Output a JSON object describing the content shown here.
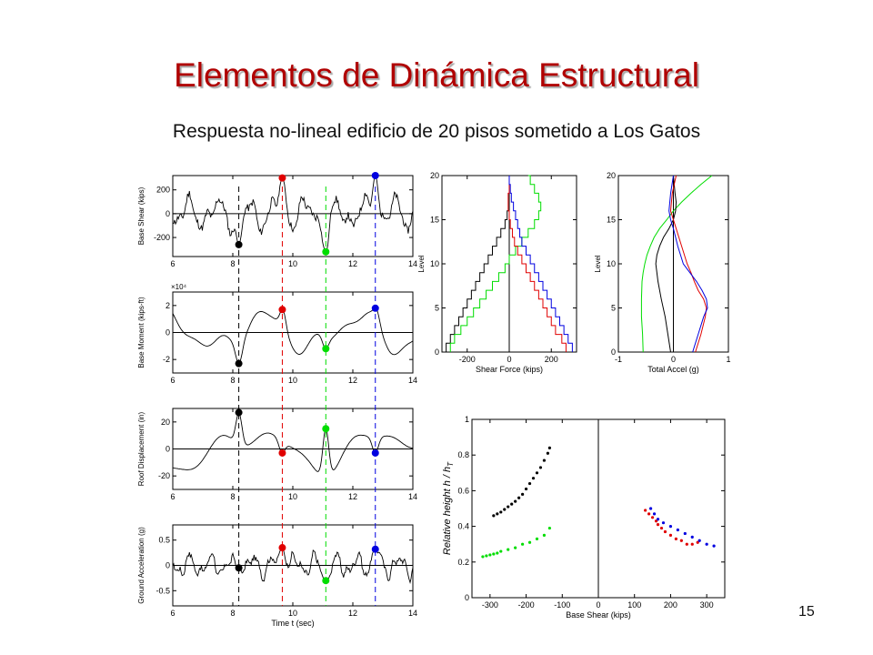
{
  "slide": {
    "title": "Elementos de Dinámica Estructural",
    "subtitle": "Respuesta no-lineal edificio de 20 pisos sometido a Los Gatos",
    "page_number": "15"
  },
  "colors": {
    "black": "#000000",
    "red": "#e00000",
    "green": "#00dd00",
    "blue": "#0000e0"
  },
  "chart_data": [
    {
      "id": "base-shear",
      "type": "line",
      "title": "",
      "xlabel": "",
      "ylabel": "Base Shear (kips)",
      "xlim": [
        6,
        14
      ],
      "ylim": [
        -360,
        320
      ],
      "xticks": [
        6,
        8,
        10,
        12,
        14
      ],
      "yticks": [
        -200,
        0,
        200
      ],
      "amp": 180,
      "seed": 11,
      "freq": 3.2,
      "markers": [
        {
          "x": 8.2,
          "y": -260,
          "color": "black"
        },
        {
          "x": 9.65,
          "y": 300,
          "color": "red"
        },
        {
          "x": 11.1,
          "y": -320,
          "color": "green"
        },
        {
          "x": 12.75,
          "y": 320,
          "color": "blue"
        }
      ]
    },
    {
      "id": "base-moment",
      "type": "line",
      "title": "",
      "xlabel": "",
      "ylabel": "Base Moment (kips-ft)",
      "scale_label": "×10⁴",
      "xlim": [
        6,
        14
      ],
      "ylim": [
        -3,
        3
      ],
      "xticks": [
        6,
        8,
        10,
        12,
        14
      ],
      "yticks": [
        -2,
        0,
        2
      ],
      "amp": 2,
      "seed": 5,
      "freq": 1.0,
      "markers": [
        {
          "x": 8.2,
          "y": -2.3,
          "color": "black"
        },
        {
          "x": 9.65,
          "y": 1.7,
          "color": "red"
        },
        {
          "x": 11.1,
          "y": -1.2,
          "color": "green"
        },
        {
          "x": 12.75,
          "y": 1.8,
          "color": "blue"
        }
      ]
    },
    {
      "id": "roof-displacement",
      "type": "line",
      "title": "",
      "xlabel": "",
      "ylabel": "Roof Displacement (in)",
      "xlim": [
        6,
        14
      ],
      "ylim": [
        -30,
        30
      ],
      "xticks": [
        6,
        8,
        10,
        12,
        14
      ],
      "yticks": [
        -20,
        0,
        20
      ],
      "amp": 22,
      "seed": 3,
      "freq": 0.7,
      "markers": [
        {
          "x": 8.2,
          "y": 27,
          "color": "black"
        },
        {
          "x": 9.65,
          "y": -3,
          "color": "red"
        },
        {
          "x": 11.1,
          "y": 15,
          "color": "green"
        },
        {
          "x": 12.75,
          "y": -3,
          "color": "blue"
        }
      ]
    },
    {
      "id": "ground-acceleration",
      "type": "line",
      "title": "",
      "xlabel": "Time t (sec)",
      "ylabel": "Ground Acceleration (g)",
      "xlim": [
        6,
        14
      ],
      "ylim": [
        -0.8,
        0.8
      ],
      "xticks": [
        6,
        8,
        10,
        12,
        14
      ],
      "yticks": [
        -0.5,
        0,
        0.5
      ],
      "amp": 0.3,
      "seed": 17,
      "freq": 4.5,
      "markers": [
        {
          "x": 8.2,
          "y": -0.05,
          "color": "black"
        },
        {
          "x": 9.65,
          "y": 0.35,
          "color": "red"
        },
        {
          "x": 11.1,
          "y": -0.3,
          "color": "green"
        },
        {
          "x": 12.75,
          "y": 0.32,
          "color": "blue"
        }
      ]
    },
    {
      "id": "shear-profile",
      "type": "line",
      "title": "",
      "xlabel": "Shear Force (kips)",
      "ylabel": "Level",
      "xlim": [
        -320,
        320
      ],
      "ylim": [
        0,
        20
      ],
      "xticks": [
        -200,
        0,
        200
      ],
      "yticks": [
        0,
        5,
        10,
        15,
        20
      ],
      "series": [
        {
          "color": "black",
          "x": [
            -300,
            -280,
            -260,
            -240,
            -220,
            -200,
            -180,
            -160,
            -140,
            -120,
            -100,
            -80,
            -60,
            -40,
            -20,
            -10,
            0,
            0,
            0,
            0,
            0
          ],
          "y": [
            0,
            1,
            2,
            3,
            4,
            5,
            6,
            7,
            8,
            9,
            10,
            11,
            12,
            13,
            14,
            15,
            16,
            17,
            18,
            19,
            20
          ]
        },
        {
          "color": "green",
          "x": [
            -280,
            -260,
            -230,
            -200,
            -170,
            -140,
            -110,
            -80,
            -50,
            -20,
            0,
            30,
            60,
            90,
            120,
            140,
            150,
            140,
            120,
            100,
            90
          ],
          "y": [
            0,
            1,
            2,
            3,
            4,
            5,
            6,
            7,
            8,
            9,
            10,
            11,
            12,
            13,
            14,
            15,
            16,
            17,
            18,
            19,
            20
          ]
        },
        {
          "color": "red",
          "x": [
            270,
            250,
            220,
            200,
            180,
            160,
            140,
            120,
            100,
            80,
            60,
            40,
            25,
            15,
            5,
            0,
            -5,
            -5,
            0,
            0,
            0
          ],
          "y": [
            0,
            1,
            2,
            3,
            4,
            5,
            6,
            7,
            8,
            9,
            10,
            11,
            12,
            13,
            14,
            15,
            16,
            17,
            18,
            19,
            20
          ]
        },
        {
          "color": "blue",
          "x": [
            300,
            280,
            260,
            240,
            220,
            200,
            180,
            160,
            140,
            120,
            100,
            80,
            60,
            50,
            40,
            30,
            20,
            10,
            5,
            0,
            0
          ],
          "y": [
            0,
            1,
            2,
            3,
            4,
            5,
            6,
            7,
            8,
            9,
            10,
            11,
            12,
            13,
            14,
            15,
            16,
            17,
            18,
            19,
            20
          ]
        }
      ]
    },
    {
      "id": "accel-profile",
      "type": "line",
      "title": "",
      "xlabel": "Total Accel (g)",
      "ylabel": "Level",
      "xlim": [
        -1,
        1
      ],
      "ylim": [
        0,
        20
      ],
      "xticks": [
        -1,
        0,
        1
      ],
      "yticks": [
        0,
        5,
        10,
        15,
        20
      ],
      "series": [
        {
          "color": "green",
          "x": [
            -0.55,
            -0.56,
            -0.58,
            -0.58,
            -0.57,
            -0.55,
            -0.52,
            -0.48,
            -0.42,
            -0.35,
            -0.25,
            -0.12,
            0.0,
            0.15,
            0.32,
            0.5,
            0.7
          ],
          "y": [
            0,
            2,
            4,
            6,
            8,
            9,
            10,
            11,
            12,
            13,
            14,
            15,
            16,
            17,
            18,
            19,
            20
          ]
        },
        {
          "color": "black",
          "x": [
            -0.05,
            -0.1,
            -0.15,
            -0.22,
            -0.28,
            -0.32,
            -0.3,
            -0.25,
            -0.18,
            -0.08,
            0.0,
            0.04,
            0.05,
            0.03,
            0.0
          ],
          "y": [
            0,
            2,
            4,
            6,
            8,
            10,
            11,
            12,
            13,
            14,
            15,
            16,
            17,
            18,
            20
          ]
        },
        {
          "color": "red",
          "x": [
            0.4,
            0.5,
            0.58,
            0.6,
            0.55,
            0.45,
            0.38,
            0.32,
            0.25,
            0.15,
            0.05,
            0.0,
            -0.05,
            -0.02,
            0.05
          ],
          "y": [
            0,
            2,
            4,
            5,
            6,
            7,
            8,
            9,
            10,
            12,
            14,
            15,
            16,
            18,
            20
          ]
        },
        {
          "color": "blue",
          "x": [
            0.35,
            0.45,
            0.55,
            0.62,
            0.6,
            0.52,
            0.42,
            0.3,
            0.18,
            0.08,
            0.0,
            -0.05,
            -0.08,
            -0.05,
            0.0
          ],
          "y": [
            0,
            2,
            4,
            5,
            6,
            7,
            8,
            9,
            10,
            12,
            14,
            15,
            16,
            18,
            20
          ]
        }
      ]
    },
    {
      "id": "relative-height",
      "type": "scatter",
      "title": "",
      "xlabel": "Base Shear (kips)",
      "ylabel": "Relative height  h / h",
      "ylabel_subscript": "T",
      "xlim": [
        -350,
        350
      ],
      "ylim": [
        0,
        1
      ],
      "xticks": [
        -300,
        -200,
        -100,
        0,
        100,
        200,
        300
      ],
      "yticks": [
        0,
        0.2,
        0.4,
        0.6,
        0.8,
        1
      ],
      "series": [
        {
          "color": "black",
          "x": [
            -290,
            -280,
            -270,
            -260,
            -250,
            -240,
            -230,
            -220,
            -210,
            -200,
            -190,
            -180,
            -170,
            -160,
            -150,
            -140,
            -135
          ],
          "y": [
            0.46,
            0.47,
            0.48,
            0.495,
            0.51,
            0.525,
            0.54,
            0.56,
            0.58,
            0.61,
            0.64,
            0.67,
            0.7,
            0.73,
            0.77,
            0.81,
            0.84
          ]
        },
        {
          "color": "green",
          "x": [
            -320,
            -310,
            -300,
            -290,
            -280,
            -270,
            -250,
            -230,
            -210,
            -190,
            -170,
            -150,
            -135
          ],
          "y": [
            0.23,
            0.235,
            0.24,
            0.245,
            0.25,
            0.26,
            0.27,
            0.28,
            0.3,
            0.31,
            0.33,
            0.35,
            0.39
          ]
        },
        {
          "color": "red",
          "x": [
            130,
            140,
            150,
            160,
            165,
            175,
            185,
            200,
            215,
            230,
            245,
            260,
            275
          ],
          "y": [
            0.49,
            0.47,
            0.45,
            0.43,
            0.41,
            0.39,
            0.37,
            0.35,
            0.33,
            0.32,
            0.3,
            0.3,
            0.31
          ]
        },
        {
          "color": "blue",
          "x": [
            145,
            155,
            165,
            180,
            200,
            220,
            240,
            260,
            280,
            300,
            320
          ],
          "y": [
            0.5,
            0.47,
            0.44,
            0.42,
            0.4,
            0.38,
            0.36,
            0.34,
            0.32,
            0.3,
            0.29
          ]
        }
      ]
    }
  ]
}
